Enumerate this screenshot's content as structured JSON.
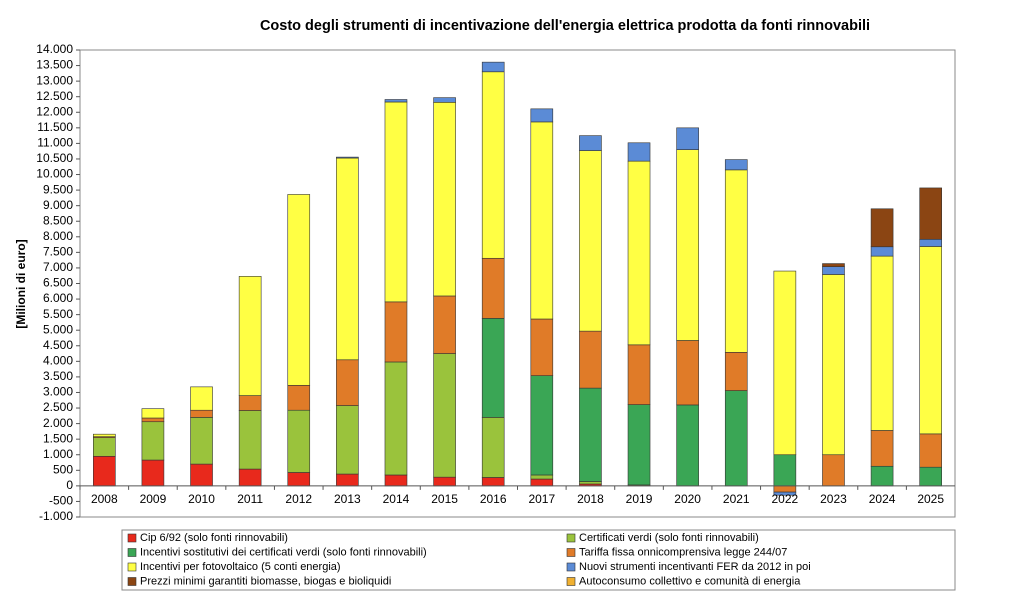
{
  "chart_data": {
    "type": "stacked_bar",
    "title": "Costo degli strumenti di incentivazione dell'energia elettrica prodotta da fonti rinnovabili",
    "y_label": "[Milioni di euro]",
    "categories": [
      "2008",
      "2009",
      "2010",
      "2011",
      "2012",
      "2013",
      "2014",
      "2015",
      "2016",
      "2017",
      "2018",
      "2019",
      "2020",
      "2021",
      "2022",
      "2023",
      "2024",
      "2025"
    ],
    "series": [
      {
        "name": "Cip 6/92 (solo fonti rinnovabili)",
        "color": "#e8291c",
        "values": [
          950,
          830,
          700,
          540,
          430,
          380,
          350,
          280,
          270,
          220,
          60,
          0,
          0,
          0,
          0,
          0,
          0,
          0
        ]
      },
      {
        "name": "Certificati verdi (solo fonti rinnovabili)",
        "color": "#9ac33c",
        "values": [
          600,
          1230,
          1500,
          1880,
          2000,
          2200,
          3630,
          3970,
          1930,
          130,
          80,
          30,
          0,
          0,
          0,
          0,
          0,
          0
        ]
      },
      {
        "name": "Incentivi sostitutivi dei certificati verdi (solo fonti rinnovabili)",
        "color": "#3aa655",
        "values": [
          0,
          0,
          0,
          0,
          0,
          0,
          0,
          0,
          3180,
          3190,
          3000,
          2580,
          2600,
          3060,
          1000,
          0,
          630,
          600
        ]
      },
      {
        "name": "Tariffa fissa onnicomprensiva legge 244/07",
        "color": "#e07b28",
        "values": [
          30,
          120,
          230,
          480,
          800,
          1470,
          1930,
          1850,
          1930,
          1820,
          1830,
          1920,
          2070,
          1230,
          -200,
          1000,
          1150,
          1070
        ]
      },
      {
        "name": "Incentivi per fotovoltaico (5 conti energia)",
        "color": "#ffff44",
        "values": [
          80,
          300,
          750,
          3830,
          6130,
          6480,
          6420,
          6220,
          5990,
          6330,
          5800,
          5900,
          6130,
          5860,
          5900,
          5790,
          5600,
          6020
        ]
      },
      {
        "name": "Nuovi strumenti incentivanti FER da 2012 in poi",
        "color": "#5b8bd6",
        "values": [
          0,
          0,
          0,
          0,
          0,
          30,
          80,
          150,
          310,
          420,
          480,
          590,
          700,
          330,
          -100,
          250,
          300,
          230
        ]
      },
      {
        "name": "Prezzi minimi garantiti biomasse, biogas e bioliquidi",
        "color": "#8b4513",
        "values": [
          0,
          0,
          0,
          0,
          0,
          0,
          0,
          0,
          0,
          0,
          0,
          0,
          0,
          0,
          0,
          100,
          1220,
          1650
        ]
      },
      {
        "name": "Autoconsumo collettivo e comunità di energia",
        "color": "#f0b030",
        "values": [
          0,
          0,
          0,
          0,
          0,
          0,
          0,
          0,
          0,
          0,
          0,
          0,
          0,
          0,
          0,
          0,
          0,
          0
        ]
      }
    ],
    "ylim": [
      -1000,
      14000
    ],
    "yticks": [
      {
        "value": -1000,
        "label": "-1.000"
      },
      {
        "value": -500,
        "label": "-500"
      },
      0,
      500,
      {
        "value": 1000,
        "label": "1.000"
      },
      {
        "value": 1500,
        "label": "1.500"
      },
      {
        "value": 2000,
        "label": "2.000"
      },
      {
        "value": 2500,
        "label": "2.500"
      },
      {
        "value": 3000,
        "label": "3.000"
      },
      {
        "value": 3500,
        "label": "3.500"
      },
      {
        "value": 4000,
        "label": "4.000"
      },
      {
        "value": 4500,
        "label": "4.500"
      },
      {
        "value": 5000,
        "label": "5.000"
      },
      {
        "value": 5500,
        "label": "5.500"
      },
      {
        "value": 6000,
        "label": "6.000"
      },
      {
        "value": 6500,
        "label": "6.500"
      },
      {
        "value": 7000,
        "label": "7.000"
      },
      {
        "value": 7500,
        "label": "7.500"
      },
      {
        "value": 8000,
        "label": "8.000"
      },
      {
        "value": 8500,
        "label": "8.500"
      },
      {
        "value": 9000,
        "label": "9.000"
      },
      {
        "value": 9500,
        "label": "9.500"
      },
      {
        "value": 10000,
        "label": "10.000"
      },
      {
        "value": 10500,
        "label": "10.500"
      },
      {
        "value": 11000,
        "label": "11.000"
      },
      {
        "value": 11500,
        "label": "11.500"
      },
      {
        "value": 12000,
        "label": "12.000"
      },
      {
        "value": 12500,
        "label": "12.500"
      },
      {
        "value": 13000,
        "label": "13.000"
      },
      {
        "value": 13500,
        "label": "13.500"
      },
      {
        "value": 14000,
        "label": "14.000"
      }
    ],
    "grid": false,
    "legend": "bottom"
  }
}
